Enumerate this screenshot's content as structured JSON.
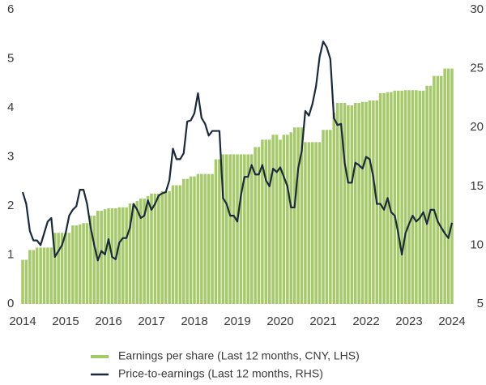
{
  "chart_data": {
    "type": "combo",
    "x": [
      2014,
      2014.083,
      2014.167,
      2014.25,
      2014.333,
      2014.417,
      2014.5,
      2014.583,
      2014.667,
      2014.75,
      2014.833,
      2014.917,
      2015,
      2015.083,
      2015.167,
      2015.25,
      2015.333,
      2015.417,
      2015.5,
      2015.583,
      2015.667,
      2015.75,
      2015.833,
      2015.917,
      2016,
      2016.083,
      2016.167,
      2016.25,
      2016.333,
      2016.417,
      2016.5,
      2016.583,
      2016.667,
      2016.75,
      2016.833,
      2016.917,
      2017,
      2017.083,
      2017.167,
      2017.25,
      2017.333,
      2017.417,
      2017.5,
      2017.583,
      2017.667,
      2017.75,
      2017.833,
      2017.917,
      2018,
      2018.083,
      2018.167,
      2018.25,
      2018.333,
      2018.417,
      2018.5,
      2018.583,
      2018.667,
      2018.75,
      2018.833,
      2018.917,
      2019,
      2019.083,
      2019.167,
      2019.25,
      2019.333,
      2019.417,
      2019.5,
      2019.583,
      2019.667,
      2019.75,
      2019.833,
      2019.917,
      2020,
      2020.083,
      2020.167,
      2020.25,
      2020.333,
      2020.417,
      2020.5,
      2020.583,
      2020.667,
      2020.75,
      2020.833,
      2020.917,
      2021,
      2021.083,
      2021.167,
      2021.25,
      2021.333,
      2021.417,
      2021.5,
      2021.583,
      2021.667,
      2021.75,
      2021.833,
      2021.917,
      2022,
      2022.083,
      2022.167,
      2022.25,
      2022.333,
      2022.417,
      2022.5,
      2022.583,
      2022.667,
      2022.75,
      2022.833,
      2022.917,
      2023,
      2023.083,
      2023.167,
      2023.25,
      2023.333,
      2023.417,
      2023.5,
      2023.583,
      2023.667,
      2023.75,
      2023.833,
      2023.917,
      2024
    ],
    "series": [
      {
        "name": "Earnings per share (Last 12 months, CNY, LHS)",
        "type": "bar",
        "color": "#a6c96a",
        "values": [
          0.9,
          0.9,
          1.1,
          1.1,
          1.15,
          1.15,
          1.15,
          1.15,
          1.15,
          1.45,
          1.45,
          1.45,
          1.45,
          1.45,
          1.6,
          1.6,
          1.62,
          1.65,
          1.65,
          1.8,
          1.8,
          1.9,
          1.9,
          1.93,
          1.95,
          1.95,
          1.95,
          1.97,
          1.97,
          1.97,
          2.05,
          2.05,
          2.1,
          2.15,
          2.15,
          2.2,
          2.25,
          2.25,
          2.25,
          2.3,
          2.3,
          2.3,
          2.42,
          2.42,
          2.42,
          2.55,
          2.55,
          2.6,
          2.6,
          2.65,
          2.65,
          2.65,
          2.65,
          2.65,
          2.95,
          2.95,
          3.05,
          3.05,
          3.05,
          3.05,
          3.05,
          3.05,
          3.05,
          3.05,
          3.05,
          3.2,
          3.2,
          3.35,
          3.35,
          3.35,
          3.45,
          3.45,
          3.35,
          3.45,
          3.45,
          3.5,
          3.6,
          3.6,
          3.6,
          3.3,
          3.3,
          3.3,
          3.3,
          3.3,
          3.55,
          3.55,
          3.55,
          3.9,
          4.1,
          4.1,
          4.1,
          4.05,
          4.05,
          4.1,
          4.1,
          4.12,
          4.12,
          4.15,
          4.15,
          4.15,
          4.3,
          4.3,
          4.32,
          4.32,
          4.35,
          4.35,
          4.35,
          4.36,
          4.36,
          4.36,
          4.36,
          4.35,
          4.35,
          4.45,
          4.45,
          4.65,
          4.65,
          4.65,
          4.8,
          4.8,
          4.8
        ]
      },
      {
        "name": "Price-to-earnings (Last 12 months, RHS)",
        "type": "line",
        "axis": "y2",
        "color": "#1b2a3a",
        "values": [
          14.5,
          13.5,
          11.2,
          10.4,
          10.4,
          10.0,
          11.0,
          12.0,
          12.3,
          9.0,
          9.5,
          10.0,
          11.0,
          12.5,
          13.0,
          13.3,
          14.7,
          14.7,
          13.5,
          11.5,
          10.0,
          8.7,
          9.5,
          9.2,
          10.5,
          9.0,
          8.8,
          10.2,
          10.6,
          10.6,
          11.5,
          13.5,
          13.0,
          12.3,
          12.5,
          13.8,
          13.0,
          13.5,
          14.2,
          14.4,
          14.5,
          15.5,
          18.2,
          17.3,
          17.3,
          17.8,
          20.5,
          20.6,
          21.2,
          22.9,
          20.8,
          20.3,
          19.3,
          19.7,
          19.7,
          19.7,
          14.0,
          13.5,
          12.5,
          12.5,
          12.0,
          14.2,
          15.8,
          15.8,
          16.8,
          16.0,
          16.0,
          16.8,
          15.5,
          15.0,
          16.5,
          16.2,
          16.6,
          15.8,
          15.0,
          13.2,
          13.2,
          16.5,
          18.0,
          21.4,
          21.0,
          22.0,
          23.5,
          26.0,
          27.3,
          26.8,
          25.8,
          20.8,
          20.2,
          20.3,
          17.0,
          15.3,
          15.3,
          17.0,
          16.8,
          16.5,
          17.5,
          17.3,
          15.8,
          13.5,
          13.5,
          13.0,
          14.0,
          12.8,
          12.5,
          11.0,
          9.2,
          11.0,
          11.8,
          12.5,
          12.0,
          12.3,
          12.8,
          11.8,
          13.0,
          13.0,
          12.0,
          11.5,
          11.0,
          10.6,
          11.9
        ]
      }
    ],
    "xlim": [
      2014,
      2024
    ],
    "xticks": [
      2014,
      2015,
      2016,
      2017,
      2018,
      2019,
      2020,
      2021,
      2022,
      2023,
      2024
    ],
    "ylim": [
      0,
      6
    ],
    "yticks": [
      0,
      1,
      2,
      3,
      4,
      5,
      6
    ],
    "y2lim": [
      5,
      30
    ],
    "y2ticks": [
      5,
      10,
      15,
      20,
      25,
      30
    ],
    "grid": false
  }
}
